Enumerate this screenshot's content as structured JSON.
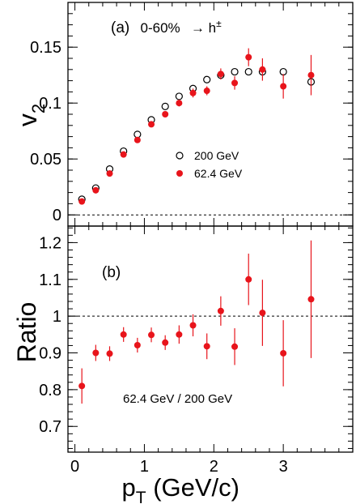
{
  "chart_data": [
    {
      "panel": "(a)",
      "type": "scatter",
      "annotation": "(a)  0-60%  → h±",
      "ylabel": "v2",
      "xlabel": "pT (GeV/c)",
      "xlim": [
        -0.1,
        4.0
      ],
      "ylim": [
        -0.01,
        0.19
      ],
      "x_ticks": [
        "0",
        "1",
        "2",
        "3"
      ],
      "y_ticks": [
        "0",
        "0.05",
        "0.1",
        "0.15"
      ],
      "reference_line": 0,
      "legend_position": "middle-right",
      "series": [
        {
          "name": "200 GeV",
          "marker": "open-circle",
          "color": "#000000",
          "x": [
            0.1,
            0.3,
            0.5,
            0.7,
            0.9,
            1.1,
            1.3,
            1.5,
            1.7,
            1.9,
            2.1,
            2.3,
            2.5,
            2.7,
            3.0,
            3.4
          ],
          "y": [
            0.014,
            0.024,
            0.041,
            0.057,
            0.072,
            0.085,
            0.097,
            0.106,
            0.113,
            0.121,
            0.125,
            0.128,
            0.128,
            0.128,
            0.128,
            0.119
          ]
        },
        {
          "name": "62.4 GeV",
          "marker": "filled-circle",
          "color": "#e8141b",
          "x": [
            0.1,
            0.3,
            0.5,
            0.7,
            0.9,
            1.1,
            1.3,
            1.5,
            1.7,
            1.9,
            2.1,
            2.3,
            2.5,
            2.7,
            3.0,
            3.4
          ],
          "y": [
            0.012,
            0.022,
            0.037,
            0.054,
            0.067,
            0.081,
            0.09,
            0.1,
            0.109,
            0.111,
            0.126,
            0.118,
            0.141,
            0.13,
            0.115,
            0.125
          ],
          "yerr": [
            0.002,
            0.002,
            0.002,
            0.002,
            0.002,
            0.002,
            0.002,
            0.003,
            0.004,
            0.004,
            0.005,
            0.006,
            0.008,
            0.01,
            0.011,
            0.018
          ]
        }
      ]
    },
    {
      "panel": "(b)",
      "type": "scatter",
      "annotation": "(b)",
      "ylabel": "Ratio",
      "xlabel": "pT (GeV/c)",
      "xlim": [
        -0.1,
        4.0
      ],
      "ylim": [
        0.63,
        1.245
      ],
      "x_ticks": [
        "0",
        "1",
        "2",
        "3"
      ],
      "y_ticks": [
        "0.7",
        "0.8",
        "0.9",
        "1",
        "1.1",
        "1.2"
      ],
      "reference_line": 1,
      "series_label": "62.4 GeV / 200 GeV",
      "series": [
        {
          "name": "62.4 GeV / 200 GeV",
          "marker": "filled-circle",
          "color": "#e8141b",
          "x": [
            0.1,
            0.3,
            0.5,
            0.7,
            0.9,
            1.1,
            1.3,
            1.5,
            1.7,
            1.9,
            2.1,
            2.3,
            2.5,
            2.7,
            3.0,
            3.4
          ],
          "y": [
            0.81,
            0.9,
            0.898,
            0.95,
            0.921,
            0.949,
            0.928,
            0.95,
            0.975,
            0.918,
            1.014,
            0.917,
            1.1,
            1.009,
            0.899,
            1.046
          ],
          "yerr": [
            0.048,
            0.022,
            0.02,
            0.02,
            0.02,
            0.02,
            0.02,
            0.025,
            0.03,
            0.035,
            0.04,
            0.05,
            0.07,
            0.09,
            0.09,
            0.16
          ]
        }
      ]
    }
  ]
}
